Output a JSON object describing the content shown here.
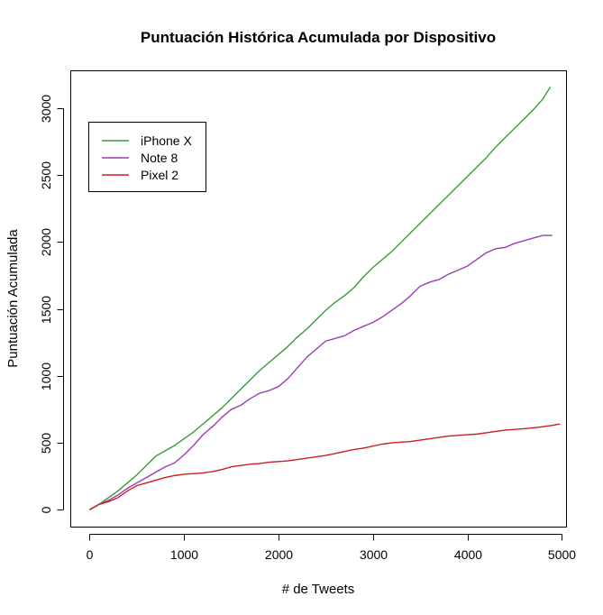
{
  "chart_data": {
    "type": "line",
    "title": "Puntuación Histórica Acumulada por Dispositivo",
    "xlabel": "# de Tweets",
    "ylabel": "Puntuación Acumulada",
    "xlim": [
      -200,
      5050
    ],
    "ylim": [
      -130,
      3280
    ],
    "xticks": [
      0,
      1000,
      2000,
      3000,
      4000,
      5000
    ],
    "yticks": [
      0,
      500,
      1000,
      1500,
      2000,
      2500,
      3000
    ],
    "x_tick_labels": [
      "0",
      "1000",
      "2000",
      "3000",
      "4000",
      "5000"
    ],
    "y_tick_labels": [
      "0",
      "500",
      "1000",
      "1500",
      "2000",
      "2500",
      "3000"
    ],
    "grid": false,
    "legend_position": "top-left",
    "series": [
      {
        "name": "iPhone X",
        "color": "#3a9a3a",
        "x": [
          0,
          100,
          200,
          300,
          400,
          500,
          600,
          700,
          800,
          900,
          1000,
          1100,
          1200,
          1300,
          1400,
          1500,
          1600,
          1700,
          1800,
          1900,
          2000,
          2100,
          2200,
          2300,
          2400,
          2500,
          2600,
          2700,
          2800,
          2900,
          3000,
          3100,
          3200,
          3300,
          3400,
          3500,
          3600,
          3700,
          3800,
          3900,
          4000,
          4100,
          4200,
          4300,
          4400,
          4500,
          4600,
          4700,
          4800,
          4880
        ],
        "y": [
          0,
          40,
          90,
          140,
          200,
          260,
          330,
          400,
          440,
          480,
          530,
          580,
          640,
          700,
          760,
          830,
          900,
          970,
          1040,
          1100,
          1160,
          1220,
          1290,
          1350,
          1420,
          1490,
          1550,
          1600,
          1660,
          1740,
          1810,
          1870,
          1930,
          2000,
          2070,
          2140,
          2210,
          2280,
          2350,
          2420,
          2490,
          2560,
          2630,
          2710,
          2780,
          2850,
          2920,
          2990,
          3070,
          3160
        ]
      },
      {
        "name": "Note 8",
        "color": "#9a3fb0",
        "x": [
          0,
          100,
          200,
          300,
          400,
          500,
          600,
          700,
          800,
          900,
          1000,
          1100,
          1200,
          1300,
          1400,
          1500,
          1600,
          1700,
          1800,
          1900,
          2000,
          2100,
          2200,
          2300,
          2400,
          2500,
          2600,
          2700,
          2800,
          2900,
          3000,
          3100,
          3200,
          3300,
          3400,
          3500,
          3600,
          3700,
          3800,
          3900,
          4000,
          4100,
          4200,
          4300,
          4400,
          4500,
          4600,
          4700,
          4800,
          4900
        ],
        "y": [
          0,
          40,
          70,
          110,
          160,
          200,
          240,
          280,
          320,
          350,
          410,
          480,
          560,
          620,
          690,
          750,
          780,
          830,
          870,
          890,
          920,
          980,
          1060,
          1140,
          1200,
          1260,
          1280,
          1300,
          1340,
          1370,
          1400,
          1440,
          1490,
          1540,
          1600,
          1670,
          1700,
          1720,
          1760,
          1790,
          1820,
          1870,
          1920,
          1950,
          1960,
          1990,
          2010,
          2030,
          2050,
          2050
        ]
      },
      {
        "name": "Pixel 2",
        "color": "#cc1f1f",
        "x": [
          0,
          100,
          200,
          300,
          400,
          500,
          600,
          700,
          800,
          900,
          1000,
          1100,
          1200,
          1300,
          1400,
          1500,
          1600,
          1700,
          1800,
          1900,
          2000,
          2100,
          2200,
          2300,
          2400,
          2500,
          2600,
          2700,
          2800,
          2900,
          3000,
          3100,
          3200,
          3300,
          3400,
          3500,
          3600,
          3700,
          3800,
          3900,
          4000,
          4100,
          4200,
          4300,
          4400,
          4500,
          4600,
          4700,
          4800,
          4900,
          4980
        ],
        "y": [
          0,
          40,
          60,
          90,
          140,
          180,
          200,
          220,
          240,
          255,
          265,
          270,
          275,
          285,
          300,
          320,
          330,
          340,
          345,
          355,
          360,
          365,
          375,
          385,
          395,
          405,
          420,
          435,
          450,
          460,
          475,
          490,
          500,
          505,
          510,
          520,
          530,
          540,
          550,
          555,
          560,
          565,
          575,
          585,
          595,
          600,
          605,
          612,
          620,
          630,
          640
        ]
      }
    ]
  }
}
